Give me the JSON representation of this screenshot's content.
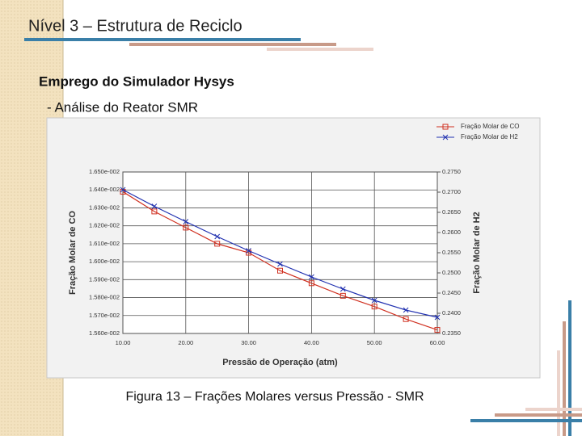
{
  "slide": {
    "title": "Nível 3 – Estrutura de Reciclo",
    "heading": "Emprego do Simulador Hysys",
    "subheading": "- Análise do Reator SMR",
    "caption": "Figura 13 – Frações Molares versus Pressão - SMR"
  },
  "chart_data": {
    "type": "line",
    "x_label": "Pressão de Operação  (atm)",
    "y_label": "Fração Molar de CO",
    "y2_label": "Fração Molar de H2",
    "x": [
      10,
      15,
      20,
      25,
      30,
      35,
      40,
      45,
      50,
      55,
      60
    ],
    "series": [
      {
        "name": "Fração Molar de CO",
        "color": "#d03020",
        "marker": "square",
        "values": [
          0.01639,
          0.01628,
          0.01619,
          0.0161,
          0.01605,
          0.01595,
          0.01588,
          0.01581,
          0.01575,
          0.01568,
          0.01562
        ]
      },
      {
        "name": "Fração Molar de H2",
        "color": "#2030b0",
        "marker": "cross",
        "axis": "y2",
        "values": [
          0.2706,
          0.2665,
          0.2627,
          0.259,
          0.2555,
          0.2522,
          0.249,
          0.246,
          0.2432,
          0.2408,
          0.239
        ]
      }
    ],
    "xlim": [
      10,
      60
    ],
    "xticks": [
      {
        "value": 10,
        "label": "10.00"
      },
      {
        "value": 20,
        "label": "20.00"
      },
      {
        "value": 30,
        "label": "30.00"
      },
      {
        "value": 40,
        "label": "40.00"
      },
      {
        "value": 50,
        "label": "50.00"
      },
      {
        "value": 60,
        "label": "60.00"
      }
    ],
    "ylim": [
      0.0156,
      0.0165
    ],
    "yticks": [
      {
        "value": 0.0165,
        "label": "1.650e-002"
      },
      {
        "value": 0.0164,
        "label": "1.640e-002"
      },
      {
        "value": 0.0163,
        "label": "1.630e-002"
      },
      {
        "value": 0.0162,
        "label": "1.620e-002"
      },
      {
        "value": 0.0161,
        "label": "1.610e-002"
      },
      {
        "value": 0.016,
        "label": "1.600e-002"
      },
      {
        "value": 0.0159,
        "label": "1.590e-002"
      },
      {
        "value": 0.0158,
        "label": "1.580e-002"
      },
      {
        "value": 0.0157,
        "label": "1.570e-002"
      },
      {
        "value": 0.0156,
        "label": "1.560e-002"
      }
    ],
    "y2lim": [
      0.235,
      0.275
    ],
    "y2ticks": [
      {
        "value": 0.275,
        "label": "0.2750"
      },
      {
        "value": 0.27,
        "label": "0.2700"
      },
      {
        "value": 0.265,
        "label": "0.2650"
      },
      {
        "value": 0.26,
        "label": "0.2600"
      },
      {
        "value": 0.255,
        "label": "0.2550"
      },
      {
        "value": 0.25,
        "label": "0.2500"
      },
      {
        "value": 0.245,
        "label": "0.2450"
      },
      {
        "value": 0.24,
        "label": "0.2400"
      },
      {
        "value": 0.235,
        "label": "0.2350"
      }
    ],
    "grid": true,
    "legend": "top-right"
  }
}
